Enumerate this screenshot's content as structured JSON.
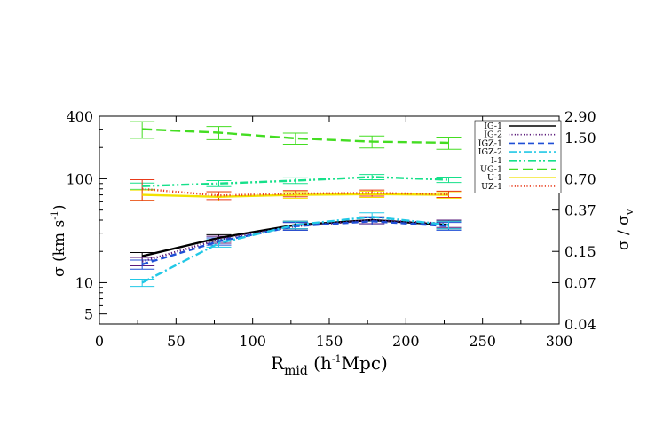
{
  "chart_data": {
    "type": "line",
    "xlabel": {
      "main": "R",
      "sub": "mid",
      "units_pre": " (h",
      "units_sup": "-1",
      "units_post": "Mpc)"
    },
    "ylabel": {
      "main": "σ (km s",
      "sup": "-1",
      "post": ")"
    },
    "y2label": {
      "main": "σ / σ",
      "sub": "v"
    },
    "xlim": [
      0,
      300
    ],
    "ylim": [
      4,
      400
    ],
    "yscale": "log",
    "x_ticks": [
      "0",
      "50",
      "100",
      "150",
      "200",
      "250",
      "300"
    ],
    "y_ticks": [
      "400",
      "100",
      "10",
      "5"
    ],
    "y2_ticks": [
      "2.90",
      "1.50",
      "0.70",
      "0.37",
      "0.15",
      "0.07",
      "0.04"
    ],
    "legend_position": "top-right",
    "series": [
      {
        "name": "IG-1",
        "color": "#000000",
        "dash": "solid",
        "x": [
          25,
          75,
          125,
          175,
          225
        ],
        "y": [
          18,
          27,
          36,
          40,
          36
        ],
        "err": [
          1.5,
          2,
          3,
          3,
          3
        ]
      },
      {
        "name": "IG-2",
        "color": "#5a1a7a",
        "dash": "dotted",
        "x": [
          25,
          75,
          125,
          175,
          225
        ],
        "y": [
          16,
          26,
          35,
          40,
          37
        ],
        "err": [
          1.5,
          2,
          3,
          3,
          3
        ]
      },
      {
        "name": "IGZ-1",
        "color": "#1f4fd6",
        "dash": "dashed",
        "x": [
          25,
          75,
          125,
          175,
          225
        ],
        "y": [
          15,
          25,
          35,
          39,
          35
        ],
        "err": [
          1.5,
          2,
          3,
          3,
          3
        ]
      },
      {
        "name": "IGZ-2",
        "color": "#22c8e6",
        "dash": "dashdot",
        "x": [
          25,
          75,
          125,
          175,
          225
        ],
        "y": [
          10,
          24,
          36,
          43,
          36
        ],
        "err": [
          0.8,
          2,
          3,
          4,
          3
        ]
      },
      {
        "name": "I-1",
        "color": "#16e08a",
        "dash": "dashdotdot",
        "x": [
          25,
          75,
          125,
          175,
          225
        ],
        "y": [
          85,
          90,
          96,
          104,
          98
        ],
        "err": [
          6,
          6,
          6,
          6,
          6
        ]
      },
      {
        "name": "UG-1",
        "color": "#44dd22",
        "dash": "longdash",
        "x": [
          25,
          75,
          125,
          175,
          225
        ],
        "y": [
          300,
          278,
          245,
          228,
          222
        ],
        "err": [
          55,
          40,
          30,
          30,
          30
        ]
      },
      {
        "name": "U-1",
        "color": "#f2e200",
        "dash": "solid",
        "x": [
          25,
          75,
          125,
          175,
          225
        ],
        "y": [
          70,
          67,
          70,
          71,
          70
        ],
        "err": [
          8,
          6,
          5,
          5,
          5
        ]
      },
      {
        "name": "UZ-1",
        "color": "#e83a1a",
        "dash": "dotted",
        "x": [
          25,
          75,
          125,
          175,
          225
        ],
        "y": [
          80,
          69,
          72,
          73,
          71
        ],
        "err": [
          18,
          6,
          5,
          5,
          5
        ]
      }
    ]
  }
}
